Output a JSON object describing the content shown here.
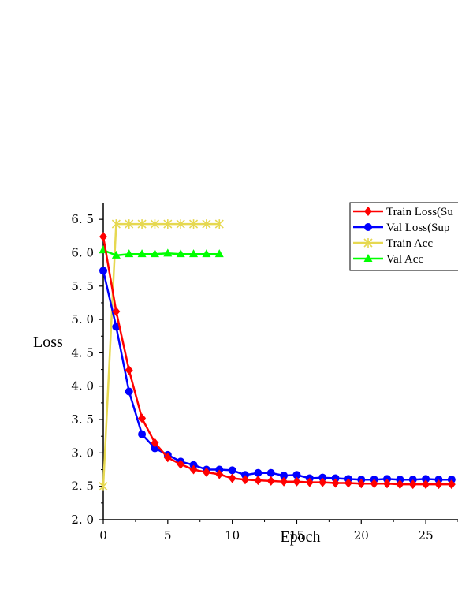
{
  "chart_data": {
    "type": "line",
    "xlabel": "Epoch",
    "ylabel": "Loss",
    "xlim": [
      0,
      27.5
    ],
    "ylim": [
      2.0,
      6.75
    ],
    "xticks": [
      0,
      5,
      10,
      15,
      20,
      25
    ],
    "xtick_labels": [
      "0",
      "5",
      "10",
      "15",
      "20",
      "25"
    ],
    "yticks": [
      2.0,
      2.5,
      3.0,
      3.5,
      4.0,
      4.5,
      5.0,
      5.5,
      6.0,
      6.5
    ],
    "ytick_labels": [
      "2. 0",
      "2. 5",
      "3. 0",
      "3. 5",
      "4. 0",
      "4. 5",
      "5. 0",
      "5. 5",
      "6. 0",
      "6. 5"
    ],
    "grid": false,
    "legend_position": "top-right",
    "series": [
      {
        "name": "Train Loss(Su",
        "color": "#ff0000",
        "marker": "diamond",
        "x": [
          0,
          1,
          2,
          3,
          4,
          5,
          6,
          7,
          8,
          9,
          10,
          11,
          12,
          13,
          14,
          15,
          16,
          17,
          18,
          19,
          20,
          21,
          22,
          23,
          24,
          25,
          26,
          27
        ],
        "values": [
          6.24,
          5.12,
          4.24,
          3.52,
          3.15,
          2.93,
          2.83,
          2.75,
          2.71,
          2.68,
          2.62,
          2.6,
          2.59,
          2.58,
          2.57,
          2.57,
          2.56,
          2.56,
          2.55,
          2.55,
          2.54,
          2.54,
          2.54,
          2.53,
          2.53,
          2.53,
          2.53,
          2.53
        ]
      },
      {
        "name": "Val Loss(Sup",
        "color": "#0000ff",
        "marker": "circle",
        "x": [
          0,
          1,
          2,
          3,
          4,
          5,
          6,
          7,
          8,
          9,
          10,
          11,
          12,
          13,
          14,
          15,
          16,
          17,
          18,
          19,
          20,
          21,
          22,
          23,
          24,
          25,
          26,
          27
        ],
        "values": [
          5.73,
          4.89,
          3.92,
          3.28,
          3.07,
          2.97,
          2.87,
          2.82,
          2.75,
          2.75,
          2.74,
          2.67,
          2.7,
          2.7,
          2.66,
          2.67,
          2.62,
          2.63,
          2.62,
          2.61,
          2.6,
          2.6,
          2.61,
          2.6,
          2.6,
          2.61,
          2.6,
          2.6
        ]
      },
      {
        "name": "Train Acc",
        "color": "#e6d850",
        "marker": "star",
        "x": [
          0,
          1,
          2,
          3,
          4,
          5,
          6,
          7,
          8,
          9
        ],
        "values": [
          2.5,
          6.43,
          6.43,
          6.43,
          6.43,
          6.43,
          6.43,
          6.43,
          6.43,
          6.43
        ]
      },
      {
        "name": "Val Acc",
        "color": "#00ff00",
        "marker": "triangle",
        "x": [
          0,
          1,
          2,
          3,
          4,
          5,
          6,
          7,
          8,
          9
        ],
        "values": [
          6.04,
          5.96,
          5.98,
          5.98,
          5.98,
          5.99,
          5.98,
          5.98,
          5.98,
          5.98
        ]
      }
    ]
  }
}
